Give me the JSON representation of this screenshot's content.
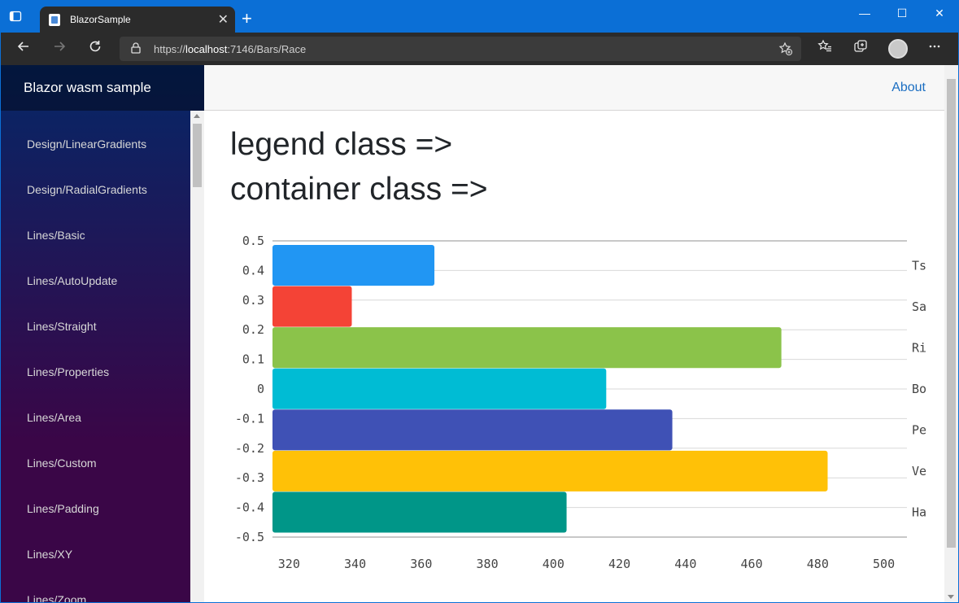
{
  "browser": {
    "tab_title": "BlazorSample",
    "tab_close": "✕",
    "new_tab": "+",
    "url_prefix": "https://",
    "url_host": "localhost",
    "url_rest": ":7146/Bars/Race",
    "window_controls": [
      "—",
      "☐",
      "✕"
    ],
    "icons": [
      "tab-actions-icon",
      "back-icon",
      "forward-icon",
      "refresh-icon",
      "lock-icon",
      "add-favorite-icon",
      "favorites-icon",
      "collections-icon",
      "profile-avatar",
      "more-icon"
    ]
  },
  "sidebar": {
    "brand": "Blazor wasm sample",
    "items": [
      {
        "label": "Design/LinearGradients"
      },
      {
        "label": "Design/RadialGradients"
      },
      {
        "label": "Lines/Basic"
      },
      {
        "label": "Lines/AutoUpdate"
      },
      {
        "label": "Lines/Straight"
      },
      {
        "label": "Lines/Properties"
      },
      {
        "label": "Lines/Area"
      },
      {
        "label": "Lines/Custom"
      },
      {
        "label": "Lines/Padding"
      },
      {
        "label": "Lines/XY"
      },
      {
        "label": "Lines/Zoom"
      }
    ]
  },
  "topbar": {
    "about": "About"
  },
  "main": {
    "heading1": "legend class =>",
    "heading2": "container class =>"
  },
  "chart_data": {
    "type": "bar",
    "orientation": "horizontal",
    "y_ticks": [
      "0.5",
      "0.4",
      "0.3",
      "0.2",
      "0.1",
      "0",
      "-0.1",
      "-0.2",
      "-0.3",
      "-0.4",
      "-0.5"
    ],
    "x_ticks": [
      "320",
      "340",
      "360",
      "380",
      "400",
      "420",
      "440",
      "460",
      "480",
      "500"
    ],
    "xlim": [
      315,
      507
    ],
    "ylim": [
      -0.5,
      0.5
    ],
    "grid": true,
    "bars": [
      {
        "label": "Ts",
        "value": 364,
        "color": "#2196f3"
      },
      {
        "label": "Sa",
        "value": 339,
        "color": "#f44336"
      },
      {
        "label": "Ri",
        "value": 469,
        "color": "#8bc34a"
      },
      {
        "label": "Bo",
        "value": 416,
        "color": "#00bcd4"
      },
      {
        "label": "Pe",
        "value": 436,
        "color": "#3f51b5"
      },
      {
        "label": "Ve",
        "value": 483,
        "color": "#ffc107"
      },
      {
        "label": "Ha",
        "value": 404,
        "color": "#009688"
      }
    ]
  }
}
